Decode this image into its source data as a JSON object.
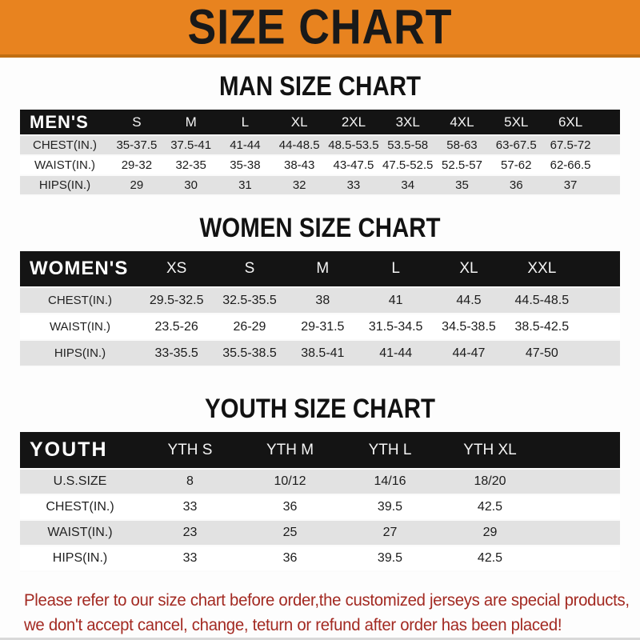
{
  "banner": {
    "title": "SIZE CHART"
  },
  "chart_data": [
    {
      "type": "table",
      "title": "MAN SIZE CHART",
      "header_label": "MEN'S",
      "columns": [
        "S",
        "M",
        "L",
        "XL",
        "2XL",
        "3XL",
        "4XL",
        "5XL",
        "6XL"
      ],
      "rows": [
        {
          "label": "CHEST(IN.)",
          "values": [
            "35-37.5",
            "37.5-41",
            "41-44",
            "44-48.5",
            "48.5-53.5",
            "53.5-58",
            "58-63",
            "63-67.5",
            "67.5-72"
          ]
        },
        {
          "label": "WAIST(IN.)",
          "values": [
            "29-32",
            "32-35",
            "35-38",
            "38-43",
            "43-47.5",
            "47.5-52.5",
            "52.5-57",
            "57-62",
            "62-66.5"
          ]
        },
        {
          "label": "HIPS(IN.)",
          "values": [
            "29",
            "30",
            "31",
            "32",
            "33",
            "34",
            "35",
            "36",
            "37"
          ]
        }
      ]
    },
    {
      "type": "table",
      "title": "WOMEN SIZE CHART",
      "header_label": "WOMEN'S",
      "columns": [
        "XS",
        "S",
        "M",
        "L",
        "XL",
        "XXL"
      ],
      "rows": [
        {
          "label": "CHEST(IN.)",
          "values": [
            "29.5-32.5",
            "32.5-35.5",
            "38",
            "41",
            "44.5",
            "44.5-48.5"
          ]
        },
        {
          "label": "WAIST(IN.)",
          "values": [
            "23.5-26",
            "26-29",
            "29-31.5",
            "31.5-34.5",
            "34.5-38.5",
            "38.5-42.5"
          ]
        },
        {
          "label": "HIPS(IN.)",
          "values": [
            "33-35.5",
            "35.5-38.5",
            "38.5-41",
            "41-44",
            "44-47",
            "47-50"
          ]
        }
      ]
    },
    {
      "type": "table",
      "title": "YOUTH SIZE CHART",
      "header_label": "YOUTH",
      "columns": [
        "YTH S",
        "YTH M",
        "YTH L",
        "YTH XL"
      ],
      "rows": [
        {
          "label": "U.S.SIZE",
          "values": [
            "8",
            "10/12",
            "14/16",
            "18/20"
          ]
        },
        {
          "label": "CHEST(IN.)",
          "values": [
            "33",
            "36",
            "39.5",
            "42.5"
          ]
        },
        {
          "label": "WAIST(IN.)",
          "values": [
            "23",
            "25",
            "27",
            "29"
          ]
        },
        {
          "label": "HIPS(IN.)",
          "values": [
            "33",
            "36",
            "39.5",
            "42.5"
          ]
        }
      ]
    }
  ],
  "disclaimer": {
    "line1": "Please refer to our size chart before order,the customized jerseys are special products,",
    "line2": "we don't accept cancel, change, teturn or refund after order has been placed!"
  },
  "colors": {
    "banner_bg": "#e8831f",
    "banner_border": "#c06e12",
    "header_bar_bg": "#141414",
    "row_alt_bg": "#e2e2e2",
    "row_bg": "#ffffff",
    "heading_text": "#121212",
    "disclaimer_text": "#a32a22"
  }
}
